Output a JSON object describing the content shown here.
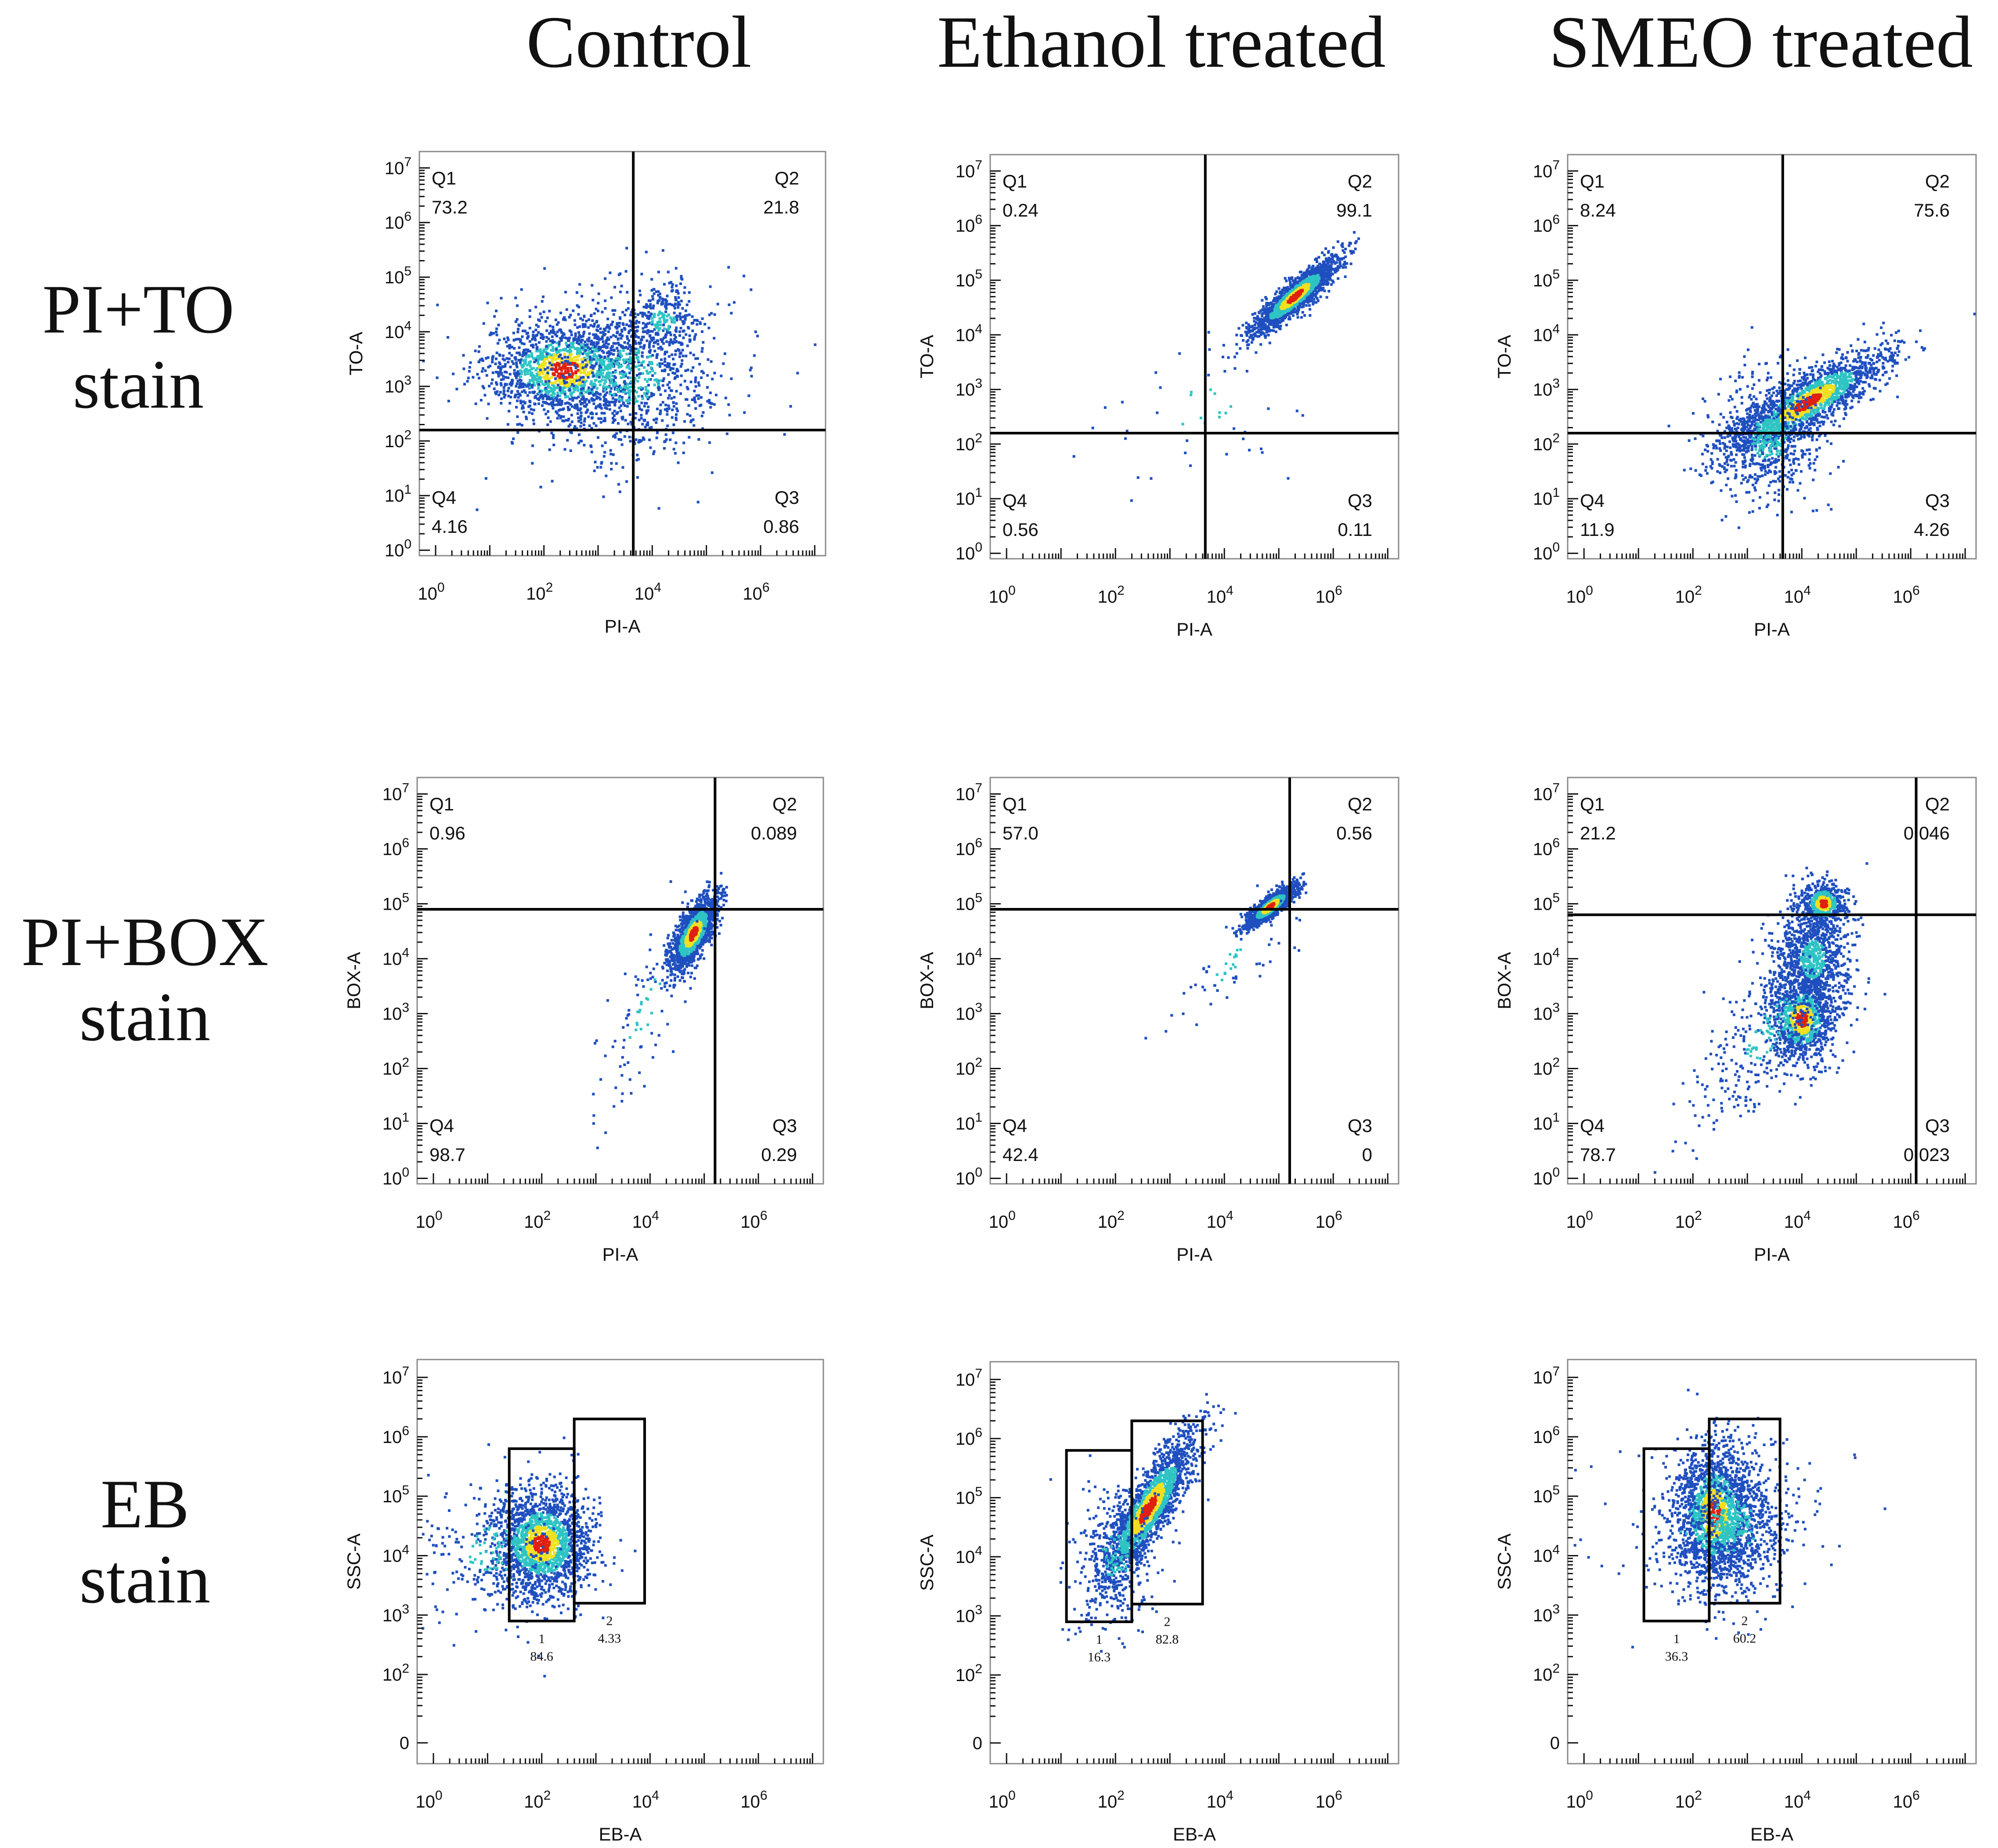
{
  "column_headers": [
    "Control",
    "Ethanol treated",
    "SMEO treated"
  ],
  "row_headers": [
    {
      "line1": "PI+TO",
      "line2": "stain"
    },
    {
      "line1": "PI+BOX",
      "line2": "stain"
    },
    {
      "line1": "EB",
      "line2": "stain"
    }
  ],
  "colors": {
    "density_low": "#1f4fbf",
    "density_mid": "#2ec4c4",
    "density_high": "#f0e020",
    "density_peak": "#e02010",
    "axis": "#111111"
  },
  "chart_data": [
    {
      "type": "scatter",
      "panel": "pi-to-control",
      "xlabel": "PI-A",
      "ylabel": "TO-A",
      "xticks": [
        "10^0",
        "10^2",
        "10^4",
        "10^6"
      ],
      "yticks": [
        "10^0",
        "10^1",
        "10^2",
        "10^3",
        "10^4",
        "10^5",
        "10^6",
        "10^7"
      ],
      "xlim": [
        -0.3,
        7.2
      ],
      "ylim": [
        -0.1,
        7.3
      ],
      "quad_x": 3.65,
      "quad_y": 2.2,
      "quadrants": [
        {
          "name": "Q1",
          "value": "73.2"
        },
        {
          "name": "Q2",
          "value": "21.8"
        },
        {
          "name": "Q3",
          "value": "0.86"
        },
        {
          "name": "Q4",
          "value": "4.16"
        }
      ],
      "clusters": [
        {
          "cx": 2.4,
          "cy": 3.3,
          "sx": 0.75,
          "sy": 0.45,
          "n": 1500,
          "hot": true
        },
        {
          "cx": 3.6,
          "cy": 3.2,
          "sx": 0.9,
          "sy": 0.8,
          "n": 900,
          "hot": false
        },
        {
          "cx": 4.2,
          "cy": 4.2,
          "sx": 0.35,
          "sy": 0.35,
          "n": 250,
          "hot": false
        }
      ]
    },
    {
      "type": "scatter",
      "panel": "pi-to-ethanol",
      "xlabel": "PI-A",
      "ylabel": "TO-A",
      "xticks": [
        "10^0",
        "10^2",
        "10^4",
        "10^6"
      ],
      "yticks": [
        "10^0",
        "10^1",
        "10^2",
        "10^3",
        "10^4",
        "10^5",
        "10^6",
        "10^7"
      ],
      "xlim": [
        -0.3,
        7.2
      ],
      "ylim": [
        -0.1,
        7.3
      ],
      "quad_x": 3.65,
      "quad_y": 2.2,
      "quadrants": [
        {
          "name": "Q1",
          "value": "0.24"
        },
        {
          "name": "Q2",
          "value": "99.1"
        },
        {
          "name": "Q3",
          "value": "0.11"
        },
        {
          "name": "Q4",
          "value": "0.56"
        }
      ],
      "clusters": [
        {
          "cx": 5.3,
          "cy": 4.7,
          "sx": 0.4,
          "sy": 0.35,
          "rho": 0.9,
          "n": 1700,
          "hot": true
        },
        {
          "cx": 3.6,
          "cy": 2.6,
          "sx": 0.9,
          "sy": 0.8,
          "n": 45,
          "hot": false
        }
      ]
    },
    {
      "type": "scatter",
      "panel": "pi-to-smeo",
      "xlabel": "PI-A",
      "ylabel": "TO-A",
      "xticks": [
        "10^0",
        "10^2",
        "10^4",
        "10^6"
      ],
      "yticks": [
        "10^0",
        "10^1",
        "10^2",
        "10^3",
        "10^4",
        "10^5",
        "10^6",
        "10^7"
      ],
      "xlim": [
        -0.3,
        7.2
      ],
      "ylim": [
        -0.1,
        7.3
      ],
      "quad_x": 3.65,
      "quad_y": 2.2,
      "quadrants": [
        {
          "name": "Q1",
          "value": "8.24"
        },
        {
          "name": "Q2",
          "value": "75.6"
        },
        {
          "name": "Q3",
          "value": "4.26"
        },
        {
          "name": "Q4",
          "value": "11.9"
        }
      ],
      "clusters": [
        {
          "cx": 4.1,
          "cy": 2.75,
          "sx": 0.75,
          "sy": 0.5,
          "rho": 0.85,
          "n": 1800,
          "hot": true
        },
        {
          "cx": 3.4,
          "cy": 2.1,
          "sx": 0.5,
          "sy": 0.6,
          "n": 600,
          "hot": false
        }
      ]
    },
    {
      "type": "scatter",
      "panel": "pi-box-control",
      "xlabel": "PI-A",
      "ylabel": "BOX-A",
      "xticks": [
        "10^0",
        "10^2",
        "10^4",
        "10^6"
      ],
      "yticks": [
        "10^0",
        "10^1",
        "10^2",
        "10^3",
        "10^4",
        "10^5",
        "10^6",
        "10^7"
      ],
      "xlim": [
        -0.3,
        7.2
      ],
      "ylim": [
        -0.1,
        7.3
      ],
      "quad_x": 5.2,
      "quad_y": 4.9,
      "quadrants": [
        {
          "name": "Q1",
          "value": "0.96"
        },
        {
          "name": "Q2",
          "value": "0.089"
        },
        {
          "name": "Q3",
          "value": "0.29"
        },
        {
          "name": "Q4",
          "value": "98.7"
        }
      ],
      "clusters": [
        {
          "cx": 4.8,
          "cy": 4.45,
          "sx": 0.22,
          "sy": 0.35,
          "rho": 0.7,
          "n": 1500,
          "hot": true
        },
        {
          "cx": 3.9,
          "cy": 3.0,
          "sx": 0.5,
          "sy": 1.1,
          "rho": 0.8,
          "n": 90,
          "hot": false
        }
      ]
    },
    {
      "type": "scatter",
      "panel": "pi-box-ethanol",
      "xlabel": "PI-A",
      "ylabel": "BOX-A",
      "xticks": [
        "10^0",
        "10^2",
        "10^4",
        "10^6"
      ],
      "yticks": [
        "10^0",
        "10^1",
        "10^2",
        "10^3",
        "10^4",
        "10^5",
        "10^6",
        "10^7"
      ],
      "xlim": [
        -0.3,
        7.2
      ],
      "ylim": [
        -0.1,
        7.3
      ],
      "quad_x": 5.2,
      "quad_y": 4.9,
      "quadrants": [
        {
          "name": "Q1",
          "value": "57.0"
        },
        {
          "name": "Q2",
          "value": "0.56"
        },
        {
          "name": "Q3",
          "value": "0"
        },
        {
          "name": "Q4",
          "value": "42.4"
        }
      ],
      "clusters": [
        {
          "cx": 4.85,
          "cy": 4.95,
          "sx": 0.22,
          "sy": 0.18,
          "rho": 0.85,
          "n": 1400,
          "hot": true
        },
        {
          "cx": 4.1,
          "cy": 3.9,
          "sx": 0.6,
          "sy": 0.6,
          "rho": 0.8,
          "n": 60,
          "hot": false
        }
      ]
    },
    {
      "type": "scatter",
      "panel": "pi-box-smeo",
      "xlabel": "PI-A",
      "ylabel": "BOX-A",
      "xticks": [
        "10^0",
        "10^2",
        "10^4",
        "10^6"
      ],
      "yticks": [
        "10^0",
        "10^1",
        "10^2",
        "10^3",
        "10^4",
        "10^5",
        "10^6",
        "10^7"
      ],
      "xlim": [
        -0.3,
        7.2
      ],
      "ylim": [
        -0.1,
        7.3
      ],
      "quad_x": 6.1,
      "quad_y": 4.8,
      "quadrants": [
        {
          "name": "Q1",
          "value": "21.2"
        },
        {
          "name": "Q2",
          "value": "0.046"
        },
        {
          "name": "Q3",
          "value": "0.023"
        },
        {
          "name": "Q4",
          "value": "78.7"
        }
      ],
      "clusters": [
        {
          "cx": 4.0,
          "cy": 2.9,
          "sx": 0.3,
          "sy": 0.4,
          "n": 900,
          "hot": true
        },
        {
          "cx": 4.2,
          "cy": 4.0,
          "sx": 0.35,
          "sy": 0.55,
          "n": 1000,
          "hot": false
        },
        {
          "cx": 4.4,
          "cy": 5.0,
          "sx": 0.2,
          "sy": 0.2,
          "n": 500,
          "hot": true
        },
        {
          "cx": 3.4,
          "cy": 2.7,
          "sx": 0.7,
          "sy": 0.9,
          "rho": 0.7,
          "n": 350,
          "hot": false
        }
      ]
    },
    {
      "type": "scatter",
      "panel": "eb-control",
      "xlabel": "EB-A",
      "ylabel": "SSC-A",
      "xticks": [
        "10^0",
        "10^2",
        "10^4",
        "10^6"
      ],
      "yticks": [
        "0",
        "10^2",
        "10^3",
        "10^4",
        "10^5",
        "10^6",
        "10^7"
      ],
      "xlim": [
        -0.3,
        7.2
      ],
      "ylim": [
        0.5,
        7.3
      ],
      "gates": [
        {
          "label": "1",
          "value": "84.6",
          "x0": 1.4,
          "x1": 2.6,
          "y0": 2.9,
          "y1": 5.8
        },
        {
          "label": "2",
          "value": "4.33",
          "x0": 2.6,
          "x1": 3.9,
          "y0": 3.2,
          "y1": 6.3
        }
      ],
      "clusters": [
        {
          "cx": 2.0,
          "cy": 4.2,
          "sx": 0.45,
          "sy": 0.45,
          "n": 1800,
          "hot": true
        },
        {
          "cx": 1.1,
          "cy": 4.1,
          "sx": 0.8,
          "sy": 0.6,
          "n": 250,
          "hot": false
        }
      ]
    },
    {
      "type": "scatter",
      "panel": "eb-ethanol",
      "xlabel": "EB-A",
      "ylabel": "SSC-A",
      "xticks": [
        "10^0",
        "10^2",
        "10^4",
        "10^6"
      ],
      "yticks": [
        "0",
        "10^2",
        "10^3",
        "10^4",
        "10^5",
        "10^6",
        "10^7"
      ],
      "xlim": [
        -0.3,
        7.2
      ],
      "ylim": [
        0.5,
        7.3
      ],
      "gates": [
        {
          "label": "1",
          "value": "16.3",
          "x0": 1.1,
          "x1": 2.3,
          "y0": 2.9,
          "y1": 5.8
        },
        {
          "label": "2",
          "value": "82.8",
          "x0": 2.3,
          "x1": 3.6,
          "y0": 3.2,
          "y1": 6.3
        }
      ],
      "clusters": [
        {
          "cx": 2.6,
          "cy": 4.8,
          "sx": 0.45,
          "sy": 0.65,
          "rho": 0.85,
          "n": 1900,
          "hot": true
        },
        {
          "cx": 2.0,
          "cy": 4.0,
          "sx": 0.4,
          "sy": 0.6,
          "n": 300,
          "hot": false
        }
      ]
    },
    {
      "type": "scatter",
      "panel": "eb-smeo",
      "xlabel": "EB-A",
      "ylabel": "SSC-A",
      "xticks": [
        "10^0",
        "10^2",
        "10^4",
        "10^6"
      ],
      "yticks": [
        "0",
        "10^2",
        "10^3",
        "10^4",
        "10^5",
        "10^6",
        "10^7"
      ],
      "xlim": [
        -0.3,
        7.2
      ],
      "ylim": [
        0.5,
        7.3
      ],
      "gates": [
        {
          "label": "1",
          "value": "36.3",
          "x0": 1.1,
          "x1": 2.3,
          "y0": 2.9,
          "y1": 5.8
        },
        {
          "label": "2",
          "value": "60.2",
          "x0": 2.3,
          "x1": 3.6,
          "y0": 3.2,
          "y1": 6.3
        }
      ],
      "clusters": [
        {
          "cx": 2.4,
          "cy": 4.7,
          "sx": 0.35,
          "sy": 0.6,
          "n": 1500,
          "hot": true
        },
        {
          "cx": 2.7,
          "cy": 4.6,
          "sx": 0.55,
          "sy": 0.6,
          "n": 800,
          "hot": false
        },
        {
          "cx": 2.5,
          "cy": 4.5,
          "sx": 1.2,
          "sy": 0.7,
          "n": 120,
          "hot": false
        }
      ]
    }
  ]
}
